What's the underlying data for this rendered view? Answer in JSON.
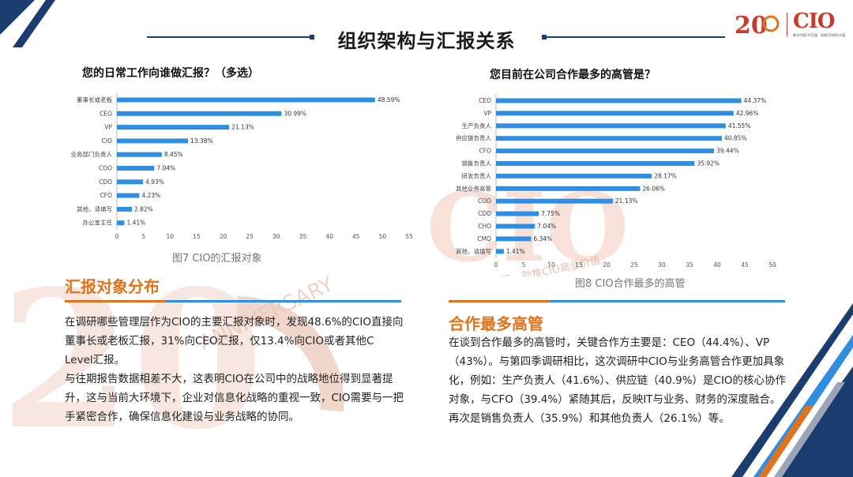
{
  "header": {
    "title": "组织架构与汇报关系",
    "logo_text": "CIO",
    "logo_tagline": "聚合中国CIO力量　助推CIO商业价值"
  },
  "watermark": {
    "line1": "ANNIVERSARY",
    "line2": "聚合中国CIO力量　助推CIO商业价值"
  },
  "colors": {
    "bar": "#2f8ee0",
    "accent": "#e0731c",
    "navy": "#1b3c6e",
    "logo": "#c93a2c"
  },
  "left_chart": {
    "question": "您的日常工作向谁做汇报？（多选）",
    "caption": "图7 CIO的汇报对象"
  },
  "right_chart": {
    "question": "您目前在公司合作最多的高管是？",
    "caption": "图8 CIO合作最多的高管"
  },
  "chart_data": [
    {
      "type": "bar",
      "orientation": "horizontal",
      "title": "您的日常工作向谁做汇报？（多选）",
      "categories": [
        "董事长或老板",
        "CEO",
        "VP",
        "CIO",
        "业务部门负责人",
        "COO",
        "CDO",
        "CFO",
        "其他，请填写",
        "办公室主任"
      ],
      "values": [
        48.59,
        30.99,
        21.13,
        13.38,
        8.45,
        7.04,
        4.93,
        4.23,
        2.82,
        1.41
      ],
      "value_labels": [
        "48.59%",
        "30.99%",
        "21.13%",
        "13.38%",
        "8.45%",
        "7.04%",
        "4.93%",
        "4.23%",
        "2.82%",
        "1.41%"
      ],
      "xlim": [
        0,
        55
      ],
      "xticks": [
        "0",
        "5",
        "10",
        "15",
        "20",
        "25",
        "30",
        "35",
        "40",
        "45",
        "50",
        "55"
      ],
      "grid": false,
      "legend": "none"
    },
    {
      "type": "bar",
      "orientation": "horizontal",
      "title": "您目前在公司合作最多的高管是？",
      "categories": [
        "CEO",
        "VP",
        "生产负责人",
        "供应链负责人",
        "CFO",
        "销售负责人",
        "研发负责人",
        "其他业务高管",
        "COO",
        "CDO",
        "CHO",
        "CMO",
        "其他，请填写"
      ],
      "values": [
        44.37,
        42.96,
        41.55,
        40.85,
        39.44,
        35.92,
        28.17,
        26.06,
        21.13,
        7.75,
        7.04,
        6.34,
        1.41
      ],
      "value_labels": [
        "44.37%",
        "42.96%",
        "41.55%",
        "40.85%",
        "39.44%",
        "35.92%",
        "28.17%",
        "26.06%",
        "21.13%",
        "7.75%",
        "7.04%",
        "6.34%",
        "1.41%"
      ],
      "xlim": [
        0,
        50
      ],
      "xticks": [
        "0",
        "5",
        "10",
        "15",
        "20",
        "25",
        "30",
        "35",
        "40",
        "45",
        "50"
      ],
      "grid": false,
      "legend": "none"
    }
  ],
  "left_section": {
    "title": "汇报对象分布",
    "paragraphs": [
      "在调研哪些管理层作为CIO的主要汇报对象时，发现48.6%的CIO直接向董事长或老板汇报，31%向CEO汇报，仅13.4%向CIO或者其他C Level汇报。",
      "与往期报告数据相差不大，这表明CIO在公司中的战略地位得到显著提升，这与当前大环境下，企业对信息化战略的重视一致，CIO需要与一把手紧密合作，确保信息化建设与业务战略的协同。"
    ]
  },
  "right_section": {
    "title": "合作最多高管",
    "paragraphs": [
      "在谈到合作最多的高管时，关键合作方主要是：CEO（44.4%）、VP（43%）。与第四季调研相比，这次调研中CIO与业务高管合作更加具象化，例如：生产负责人（41.6%）、供应链（40.9%）是CIO的核心协作对象，与CFO（39.4%）紧随其后，反映IT与业务、财务的深度融合。再次是销售负责人（35.9%）和其他负责人（26.1%）等。"
    ]
  }
}
